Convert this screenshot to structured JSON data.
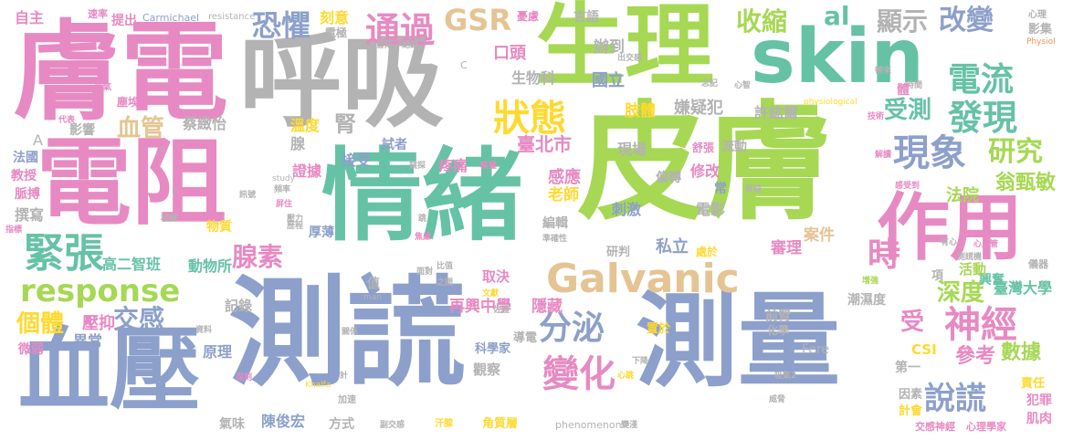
{
  "palette": {
    "pink": "#e78ac3",
    "gray": "#b3b3b3",
    "green": "#a6d854",
    "teal": "#66c2a5",
    "blue": "#8da0cb",
    "tan": "#e5c494",
    "orange": "#fc8d62",
    "yellow": "#ffd92f"
  },
  "words": [
    {
      "text": "膚電",
      "color": "pink"
    },
    {
      "text": "呼吸",
      "color": "gray"
    },
    {
      "text": "生理",
      "color": "green"
    },
    {
      "text": "skin",
      "color": "teal"
    },
    {
      "text": "電阻",
      "color": "pink"
    },
    {
      "text": "情緒",
      "color": "teal"
    },
    {
      "text": "皮膚",
      "color": "green"
    },
    {
      "text": "測謊",
      "color": "blue"
    },
    {
      "text": "血壓",
      "color": "blue"
    },
    {
      "text": "測量",
      "color": "blue"
    },
    {
      "text": "作用",
      "color": "pink"
    },
    {
      "text": "Galvanic",
      "color": "tan"
    },
    {
      "text": "response",
      "color": "green"
    },
    {
      "text": "緊張",
      "color": "teal"
    },
    {
      "text": "恐懼",
      "color": "blue"
    },
    {
      "text": "狀態",
      "color": "yellow"
    },
    {
      "text": "GSR",
      "color": "tan"
    },
    {
      "text": "通過",
      "color": "pink"
    },
    {
      "text": "收縮",
      "color": "green"
    },
    {
      "text": "改變",
      "color": "blue"
    },
    {
      "text": "顯示",
      "color": "gray"
    },
    {
      "text": "電流",
      "color": "teal"
    },
    {
      "text": "發現",
      "color": "teal"
    },
    {
      "text": "現象",
      "color": "blue"
    },
    {
      "text": "研究",
      "color": "green"
    },
    {
      "text": "受測",
      "color": "teal"
    },
    {
      "text": "神經",
      "color": "pink"
    },
    {
      "text": "說謊",
      "color": "blue"
    },
    {
      "text": "分泌",
      "color": "blue"
    },
    {
      "text": "變化",
      "color": "pink"
    },
    {
      "text": "時",
      "color": "pink"
    },
    {
      "text": "深度",
      "color": "green"
    },
    {
      "text": "數據",
      "color": "green"
    },
    {
      "text": "參考",
      "color": "pink"
    },
    {
      "text": "個體",
      "color": "yellow"
    },
    {
      "text": "交感",
      "color": "blue"
    },
    {
      "text": "腺素",
      "color": "pink"
    },
    {
      "text": "血管",
      "color": "tan"
    },
    {
      "text": "al",
      "color": "teal"
    },
    {
      "text": "高二智班",
      "color": "teal"
    },
    {
      "text": "動物所",
      "color": "teal"
    },
    {
      "text": "再興中學",
      "color": "pink"
    },
    {
      "text": "隱藏",
      "color": "pink"
    },
    {
      "text": "臺灣大學",
      "color": "teal"
    },
    {
      "text": "興奮",
      "color": "teal"
    },
    {
      "text": "翁甄敏",
      "color": "green"
    },
    {
      "text": "法院",
      "color": "green"
    },
    {
      "text": "活動",
      "color": "green"
    },
    {
      "text": "案件",
      "color": "tan"
    },
    {
      "text": "審理",
      "color": "pink"
    },
    {
      "text": "私立",
      "color": "blue"
    },
    {
      "text": "感應",
      "color": "pink"
    },
    {
      "text": "老師",
      "color": "yellow"
    },
    {
      "text": "臺北市",
      "color": "pink"
    },
    {
      "text": "嫌疑犯",
      "color": "gray"
    },
    {
      "text": "許紘爾",
      "color": "gray"
    },
    {
      "text": "肢體",
      "color": "yellow"
    },
    {
      "text": "國立",
      "color": "blue"
    },
    {
      "text": "辦到",
      "color": "gray"
    },
    {
      "text": "言語",
      "color": "gray"
    },
    {
      "text": "口頭",
      "color": "pink"
    },
    {
      "text": "生物科",
      "color": "gray"
    },
    {
      "text": "憂慮",
      "color": "pink"
    },
    {
      "text": "提出",
      "color": "pink"
    },
    {
      "text": "Carmichael",
      "color": "blue"
    },
    {
      "text": "resistance",
      "color": "gray"
    },
    {
      "text": "刻意",
      "color": "yellow"
    },
    {
      "text": "自主",
      "color": "pink"
    },
    {
      "text": "速率",
      "color": "pink"
    },
    {
      "text": "蔡緻怡",
      "color": "gray"
    },
    {
      "text": "溫度",
      "color": "yellow"
    },
    {
      "text": "腺",
      "color": "gray"
    },
    {
      "text": "試者",
      "color": "blue"
    },
    {
      "text": "接受",
      "color": "blue"
    },
    {
      "text": "證據",
      "color": "pink"
    },
    {
      "text": "疼痛",
      "color": "pink"
    },
    {
      "text": "修改",
      "color": "pink"
    },
    {
      "text": "現場",
      "color": "gray"
    },
    {
      "text": "流動",
      "color": "gray"
    },
    {
      "text": "舒張",
      "color": "pink"
    },
    {
      "text": "刺激",
      "color": "blue"
    },
    {
      "text": "偏轉",
      "color": "gray"
    },
    {
      "text": "電影",
      "color": "gray"
    },
    {
      "text": "常",
      "color": "blue"
    },
    {
      "text": "編輯",
      "color": "gray"
    },
    {
      "text": "研判",
      "color": "gray"
    },
    {
      "text": "處於",
      "color": "yellow"
    },
    {
      "text": "取決",
      "color": "pink"
    },
    {
      "text": "值",
      "color": "gray"
    },
    {
      "text": "項",
      "color": "gray"
    },
    {
      "text": "影響",
      "color": "gray"
    },
    {
      "text": "腎",
      "color": "gray"
    },
    {
      "text": "教授",
      "color": "pink"
    },
    {
      "text": "法國",
      "color": "blue"
    },
    {
      "text": "脈搏",
      "color": "pink"
    },
    {
      "text": "撰寫",
      "color": "gray"
    },
    {
      "text": "物質",
      "color": "yellow"
    },
    {
      "text": "原理",
      "color": "blue"
    },
    {
      "text": "記錄",
      "color": "gray"
    },
    {
      "text": "壓抑",
      "color": "pink"
    },
    {
      "text": "異常",
      "color": "blue"
    },
    {
      "text": "微弱",
      "color": "pink"
    },
    {
      "text": "氣味",
      "color": "gray"
    },
    {
      "text": "陳俊宏",
      "color": "blue"
    },
    {
      "text": "方式",
      "color": "gray"
    },
    {
      "text": "導電",
      "color": "gray"
    },
    {
      "text": "科學家",
      "color": "blue"
    },
    {
      "text": "觀察",
      "color": "gray"
    },
    {
      "text": "角質層",
      "color": "yellow"
    },
    {
      "text": "phenomenon",
      "color": "gray"
    },
    {
      "text": "第一",
      "color": "gray"
    },
    {
      "text": "計會",
      "color": "yellow"
    },
    {
      "text": "因素",
      "color": "gray"
    },
    {
      "text": "責任",
      "color": "yellow"
    },
    {
      "text": "犯罪",
      "color": "pink"
    },
    {
      "text": "肌肉",
      "color": "pink"
    },
    {
      "text": "交感神經",
      "color": "pink"
    },
    {
      "text": "心理學家",
      "color": "pink"
    },
    {
      "text": "潮濕度",
      "color": "gray"
    },
    {
      "text": "前臂",
      "color": "gray"
    },
    {
      "text": "化學",
      "color": "gray"
    },
    {
      "text": "置於",
      "color": "yellow"
    },
    {
      "text": "CSI",
      "color": "yellow"
    },
    {
      "text": "受",
      "color": "pink"
    },
    {
      "text": "Fere",
      "color": "gray"
    },
    {
      "text": "心理",
      "color": "gray"
    },
    {
      "text": "影集",
      "color": "gray"
    },
    {
      "text": "Physiol",
      "color": "orange"
    },
    {
      "text": "帶來",
      "color": "gray"
    },
    {
      "text": "時間",
      "color": "gray"
    },
    {
      "text": "physiological",
      "color": "yellow"
    },
    {
      "text": "技術",
      "color": "pink"
    },
    {
      "text": "解讀",
      "color": "pink"
    },
    {
      "text": "感受到",
      "color": "pink"
    },
    {
      "text": "心血管",
      "color": "pink"
    },
    {
      "text": "測謊機",
      "color": "gray"
    },
    {
      "text": "儀器",
      "color": "gray"
    },
    {
      "text": "增強",
      "color": "green"
    },
    {
      "text": "有心",
      "color": "gray"
    },
    {
      "text": "A",
      "color": "gray"
    },
    {
      "text": "S",
      "color": "gray"
    },
    {
      "text": "E",
      "color": "gray"
    },
    {
      "text": "C",
      "color": "gray"
    },
    {
      "text": "study",
      "color": "gray"
    },
    {
      "text": "man",
      "color": "gray"
    },
    {
      "text": "Khalfa",
      "color": "yellow"
    },
    {
      "text": "吸氣",
      "color": "pink"
    },
    {
      "text": "塵埃",
      "color": "pink"
    },
    {
      "text": "代表",
      "color": "pink"
    },
    {
      "text": "指標",
      "color": "pink"
    },
    {
      "text": "相關",
      "color": "gray"
    },
    {
      "text": "屏住",
      "color": "pink"
    },
    {
      "text": "壓力",
      "color": "gray"
    },
    {
      "text": "訊號",
      "color": "gray"
    },
    {
      "text": "頻率",
      "color": "gray"
    },
    {
      "text": "窺探",
      "color": "gray"
    },
    {
      "text": "裝置",
      "color": "pink"
    },
    {
      "text": "跳",
      "color": "gray"
    },
    {
      "text": "焦慮",
      "color": "pink"
    },
    {
      "text": "準確性",
      "color": "gray"
    },
    {
      "text": "比值",
      "color": "gray"
    },
    {
      "text": "之間",
      "color": "gray"
    },
    {
      "text": "文獻",
      "color": "yellow"
    },
    {
      "text": "佐證",
      "color": "gray"
    },
    {
      "text": "面對",
      "color": "gray"
    },
    {
      "text": "深刻",
      "color": "pink"
    },
    {
      "text": "關係",
      "color": "gray"
    },
    {
      "text": "資料",
      "color": "gray"
    },
    {
      "text": "計",
      "color": "gray"
    },
    {
      "text": "加速",
      "color": "gray"
    },
    {
      "text": "副交感",
      "color": "gray"
    },
    {
      "text": "汗腺",
      "color": "yellow"
    },
    {
      "text": "變淺",
      "color": "gray"
    },
    {
      "text": "下降",
      "color": "gray"
    },
    {
      "text": "心跳",
      "color": "yellow"
    },
    {
      "text": "吸氣2",
      "color": "gray"
    },
    {
      "text": "威脅",
      "color": "gray"
    },
    {
      "text": "心智",
      "color": "gray"
    },
    {
      "text": "質疑",
      "color": "gray"
    },
    {
      "text": "皆知",
      "color": "gray"
    },
    {
      "text": "紀錄",
      "color": "gray"
    },
    {
      "text": "出交感",
      "color": "gray"
    },
    {
      "text": "念記",
      "color": "gray"
    },
    {
      "text": "電極",
      "color": "gray"
    },
    {
      "text": "歷程",
      "color": "gray"
    },
    {
      "text": "體",
      "color": "pink"
    },
    {
      "text": "厚薄",
      "color": "blue"
    }
  ]
}
